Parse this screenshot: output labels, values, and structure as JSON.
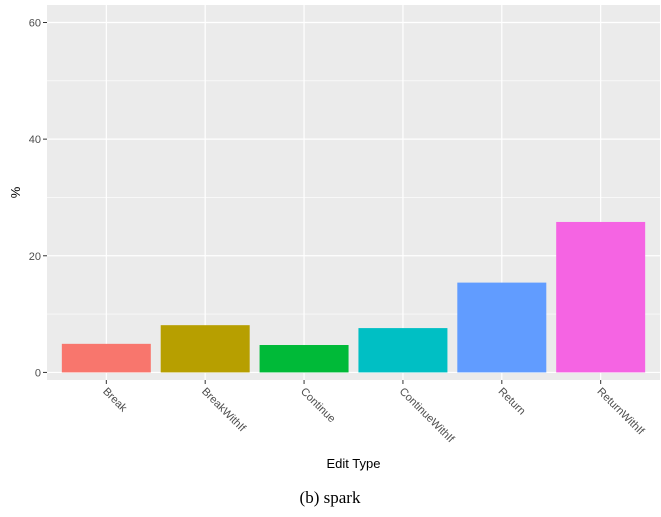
{
  "chart_data": {
    "type": "bar",
    "categories": [
      "Break",
      "BreakWithIf",
      "Continue",
      "ContinueWithIf",
      "Return",
      "ReturnWithIf"
    ],
    "values": [
      4.9,
      8.1,
      4.7,
      7.6,
      15.4,
      25.8
    ],
    "colors": [
      "#F8766D",
      "#B79F00",
      "#00BA38",
      "#00BFC4",
      "#619CFF",
      "#F564E3"
    ],
    "xlabel": "Edit Type",
    "ylabel": "%",
    "ylim": [
      -1.3,
      63
    ],
    "yticks": [
      0,
      20,
      40,
      60
    ],
    "grid": true,
    "panel_background": "#EBEBEB"
  },
  "caption": "(b) spark"
}
